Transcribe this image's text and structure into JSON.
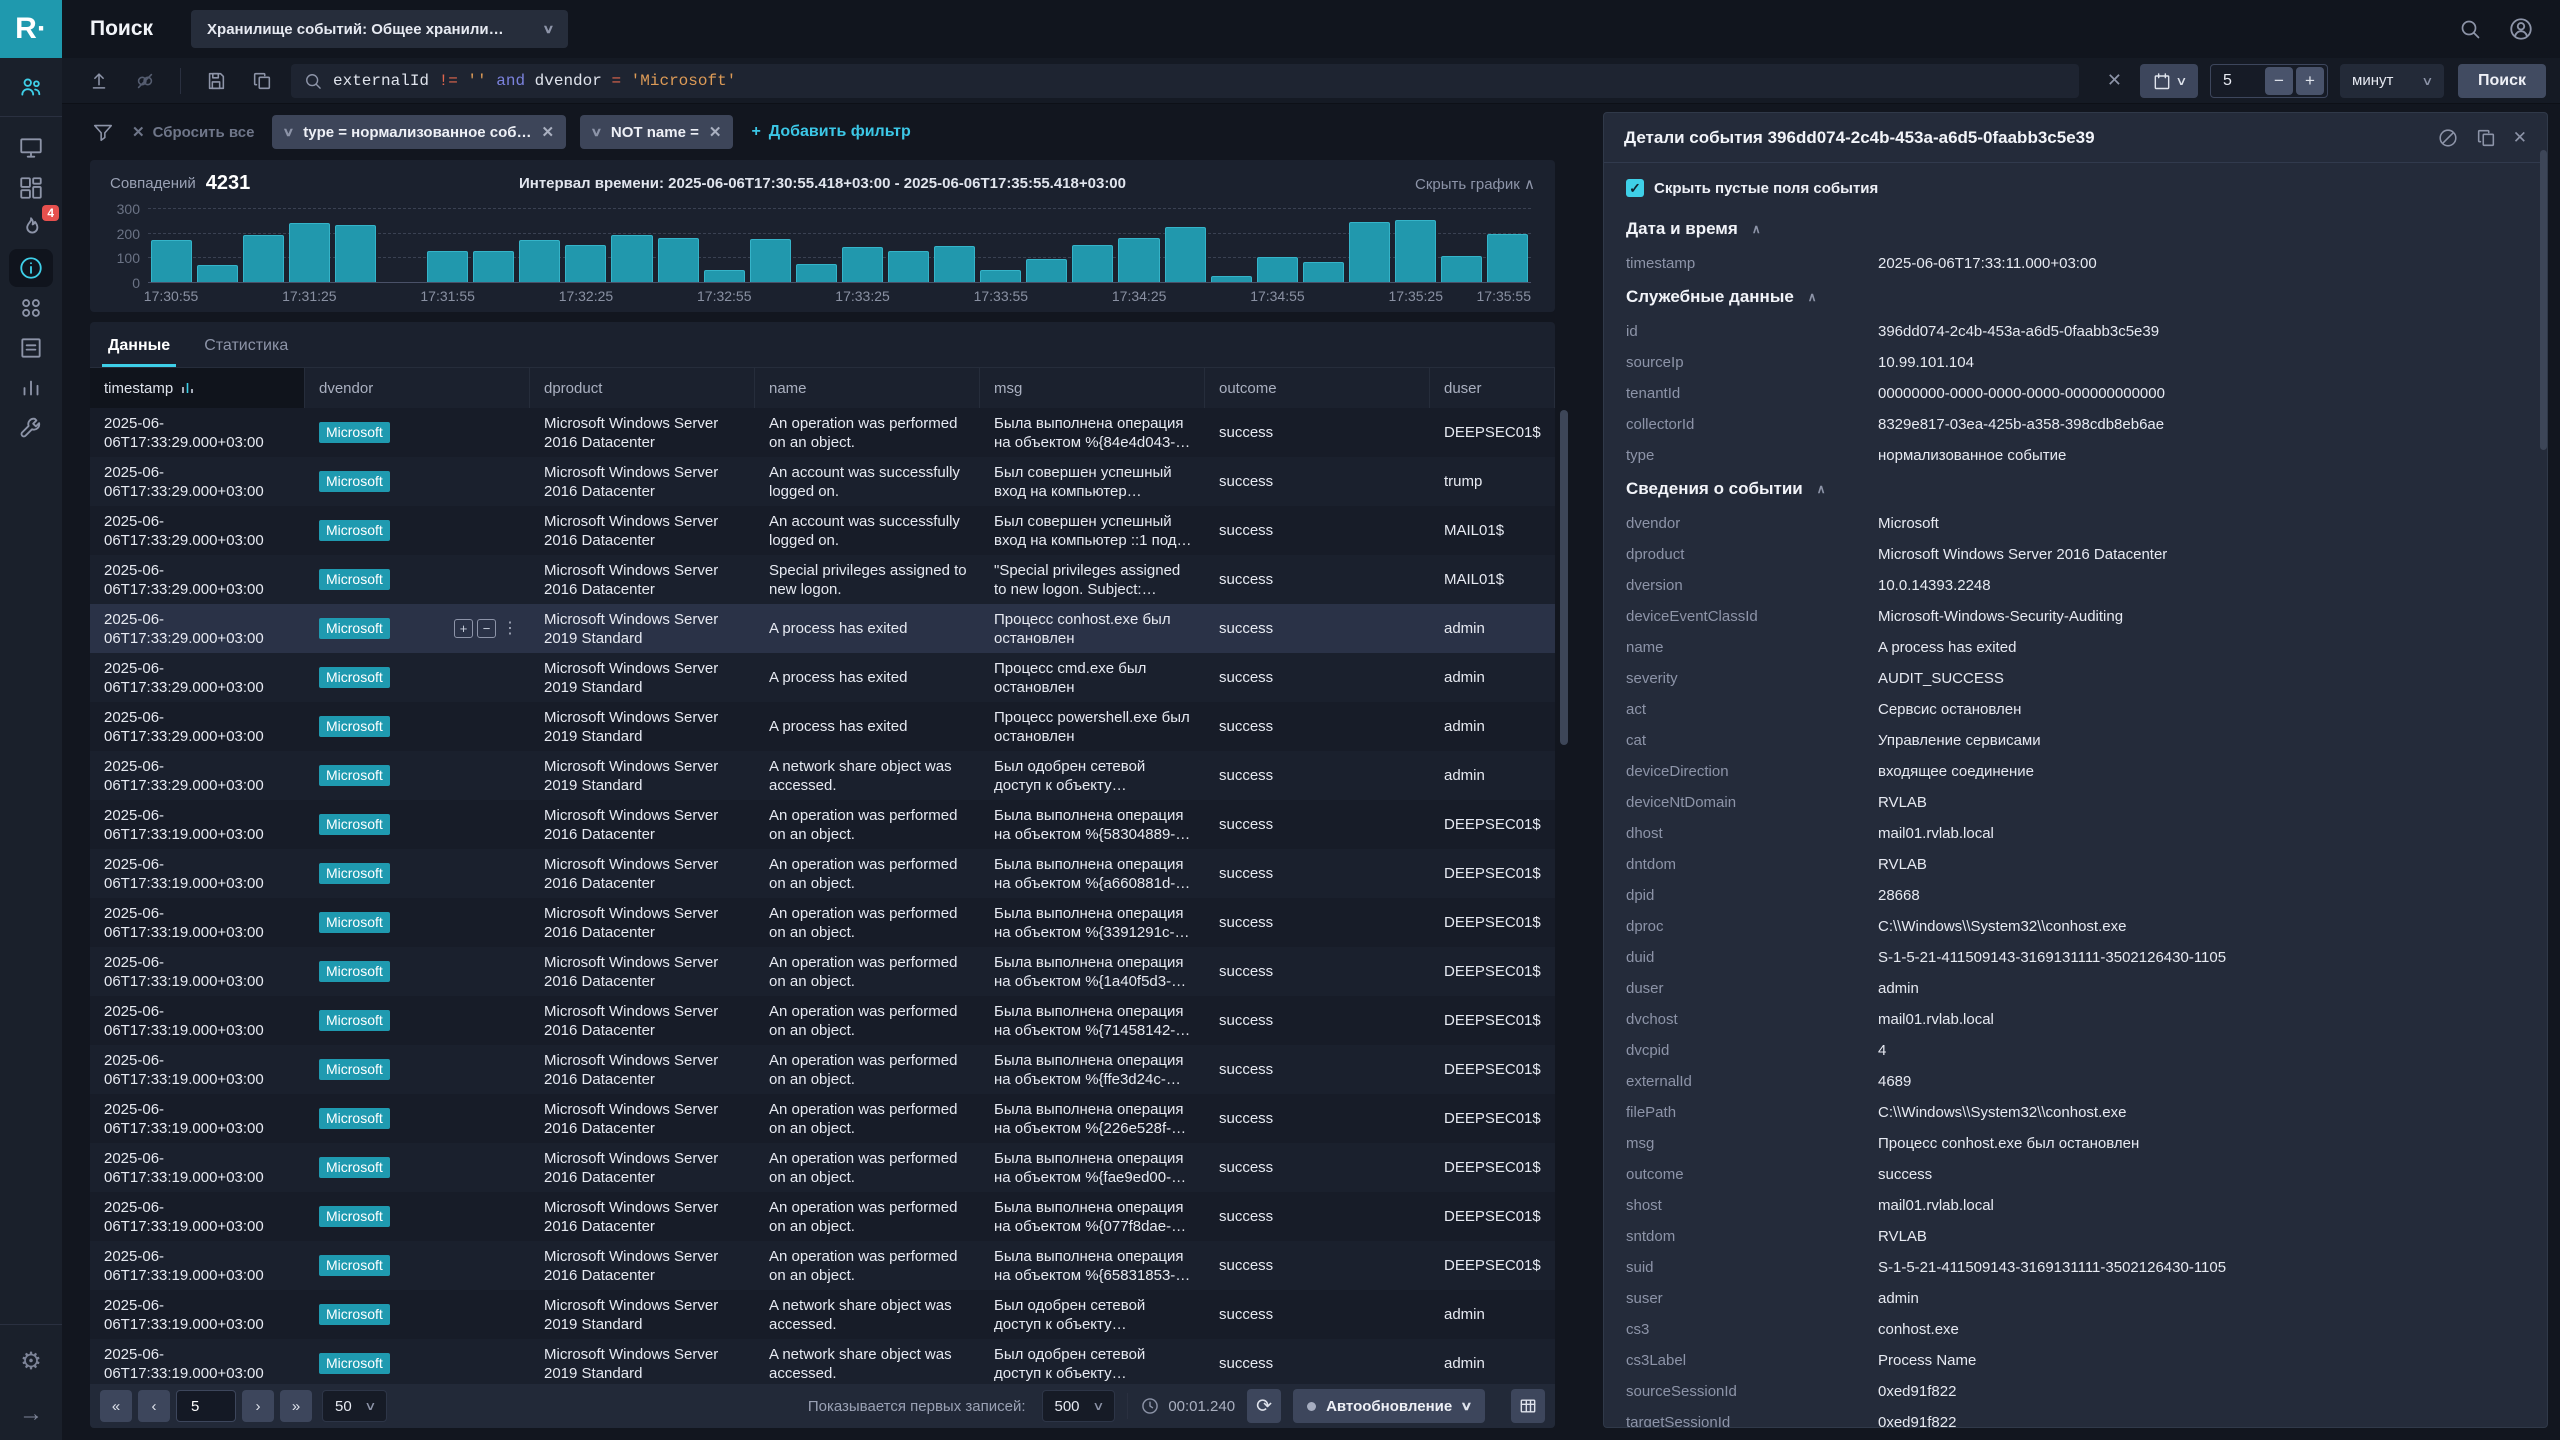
{
  "topbar": {
    "logo": "R·",
    "title": "Поиск",
    "storage_selector": "Хранилище событий: Общее хранили…"
  },
  "sidebar": {
    "incidents_badge": "4"
  },
  "search": {
    "query": "externalId != '' and dvendor = 'Microsoft'",
    "query_tokens": [
      {
        "text": "externalId",
        "type": "f"
      },
      {
        "text": "!=",
        "type": "o"
      },
      {
        "text": "''",
        "type": "s"
      },
      {
        "text": "and",
        "type": "k"
      },
      {
        "text": "dvendor",
        "type": "f"
      },
      {
        "text": "=",
        "type": "o"
      },
      {
        "text": "'Microsoft'",
        "type": "s"
      }
    ],
    "interval_value": "5",
    "interval_unit": "минут",
    "submit_label": "Поиск"
  },
  "filters": {
    "reset_label": "Сбросить все",
    "chips": [
      "type = нормализованное соб…",
      "NOT name ="
    ],
    "add_label": "Добавить фильтр"
  },
  "summary": {
    "matches_label": "Совпадений",
    "matches_count": "4231",
    "interval_text": "Интервал времени:  2025-06-06T17:30:55.418+03:00 - 2025-06-06T17:35:55.418+03:00",
    "hide_chart_label": "Скрыть график"
  },
  "chart_data": {
    "type": "bar",
    "title": "",
    "xlabel": "",
    "ylabel": "",
    "ylim": [
      0,
      300
    ],
    "yticks": [
      300,
      200,
      100,
      0
    ],
    "grid": true,
    "bar_color": "#2198ad",
    "xticks": [
      "17:30:55",
      "17:31:25",
      "17:31:55",
      "17:32:25",
      "17:32:55",
      "17:33:25",
      "17:33:55",
      "17:34:25",
      "17:34:55",
      "17:35:25",
      "17:35:55"
    ],
    "values": [
      170,
      70,
      190,
      240,
      230,
      0,
      125,
      125,
      170,
      150,
      190,
      180,
      50,
      175,
      75,
      140,
      125,
      145,
      50,
      95,
      150,
      180,
      225,
      25,
      100,
      80,
      245,
      250,
      105,
      195
    ]
  },
  "tabs": [
    {
      "label": "Данные"
    },
    {
      "label": "Статистика"
    }
  ],
  "table": {
    "columns": [
      "timestamp",
      "dvendor",
      "dproduct",
      "name",
      "msg",
      "outcome",
      "duser"
    ],
    "rows": [
      {
        "timestamp": "2025-06-06T17:33:29.000+03:00",
        "dvendor": "Microsoft",
        "dproduct": "Microsoft Windows Server 2016 Datacenter",
        "name": "An operation was performed on an object.",
        "msg": "Была выполнена операция на объектом %{84e4d043-…",
        "outcome": "success",
        "duser": "DEEPSEC01$",
        "selected": false
      },
      {
        "timestamp": "2025-06-06T17:33:29.000+03:00",
        "dvendor": "Microsoft",
        "dproduct": "Microsoft Windows Server 2016 Datacenter",
        "name": "An account was successfully logged on.",
        "msg": "Был совершен успешный вход на компьютер…",
        "outcome": "success",
        "duser": "trump",
        "selected": false
      },
      {
        "timestamp": "2025-06-06T17:33:29.000+03:00",
        "dvendor": "Microsoft",
        "dproduct": "Microsoft Windows Server 2016 Datacenter",
        "name": "An account was successfully logged on.",
        "msg": "Был совершен успешный вход на компьютер ::1 под…",
        "outcome": "success",
        "duser": "MAIL01$",
        "selected": false
      },
      {
        "timestamp": "2025-06-06T17:33:29.000+03:00",
        "dvendor": "Microsoft",
        "dproduct": "Microsoft Windows Server 2016 Datacenter",
        "name": "Special privileges assigned to new logon.",
        "msg": "\"Special privileges assigned to new logon. Subject: Security…",
        "outcome": "success",
        "duser": "MAIL01$",
        "selected": false
      },
      {
        "timestamp": "2025-06-06T17:33:29.000+03:00",
        "dvendor": "Microsoft",
        "dproduct": "Microsoft Windows Server 2019 Standard",
        "name": "A process has exited",
        "msg": "Процесс conhost.exe был остановлен",
        "outcome": "success",
        "duser": "admin",
        "selected": true
      },
      {
        "timestamp": "2025-06-06T17:33:29.000+03:00",
        "dvendor": "Microsoft",
        "dproduct": "Microsoft Windows Server 2019 Standard",
        "name": "A process has exited",
        "msg": "Процесс cmd.exe был остановлен",
        "outcome": "success",
        "duser": "admin",
        "selected": false
      },
      {
        "timestamp": "2025-06-06T17:33:29.000+03:00",
        "dvendor": "Microsoft",
        "dproduct": "Microsoft Windows Server 2019 Standard",
        "name": "A process has exited",
        "msg": "Процесс powershell.exe был остановлен",
        "outcome": "success",
        "duser": "admin",
        "selected": false
      },
      {
        "timestamp": "2025-06-06T17:33:29.000+03:00",
        "dvendor": "Microsoft",
        "dproduct": "Microsoft Windows Server 2019 Standard",
        "name": "A network share object was accessed.",
        "msg": "Был одобрен сетевой доступ к объекту…",
        "outcome": "success",
        "duser": "admin",
        "selected": false
      },
      {
        "timestamp": "2025-06-06T17:33:19.000+03:00",
        "dvendor": "Microsoft",
        "dproduct": "Microsoft Windows Server 2016 Datacenter",
        "name": "An operation was performed on an object.",
        "msg": "Была выполнена операция на объектом %{58304889-…",
        "outcome": "success",
        "duser": "DEEPSEC01$",
        "selected": false
      },
      {
        "timestamp": "2025-06-06T17:33:19.000+03:00",
        "dvendor": "Microsoft",
        "dproduct": "Microsoft Windows Server 2016 Datacenter",
        "name": "An operation was performed on an object.",
        "msg": "Была выполнена операция на объектом %{a660881d-…",
        "outcome": "success",
        "duser": "DEEPSEC01$",
        "selected": false
      },
      {
        "timestamp": "2025-06-06T17:33:19.000+03:00",
        "dvendor": "Microsoft",
        "dproduct": "Microsoft Windows Server 2016 Datacenter",
        "name": "An operation was performed on an object.",
        "msg": "Была выполнена операция на объектом %{3391291c-…",
        "outcome": "success",
        "duser": "DEEPSEC01$",
        "selected": false
      },
      {
        "timestamp": "2025-06-06T17:33:19.000+03:00",
        "dvendor": "Microsoft",
        "dproduct": "Microsoft Windows Server 2016 Datacenter",
        "name": "An operation was performed on an object.",
        "msg": "Была выполнена операция на объектом %{1a40f5d3-…",
        "outcome": "success",
        "duser": "DEEPSEC01$",
        "selected": false
      },
      {
        "timestamp": "2025-06-06T17:33:19.000+03:00",
        "dvendor": "Microsoft",
        "dproduct": "Microsoft Windows Server 2016 Datacenter",
        "name": "An operation was performed on an object.",
        "msg": "Была выполнена операция на объектом %{71458142-…",
        "outcome": "success",
        "duser": "DEEPSEC01$",
        "selected": false
      },
      {
        "timestamp": "2025-06-06T17:33:19.000+03:00",
        "dvendor": "Microsoft",
        "dproduct": "Microsoft Windows Server 2016 Datacenter",
        "name": "An operation was performed on an object.",
        "msg": "Была выполнена операция на объектом %{ffe3d24c-…",
        "outcome": "success",
        "duser": "DEEPSEC01$",
        "selected": false
      },
      {
        "timestamp": "2025-06-06T17:33:19.000+03:00",
        "dvendor": "Microsoft",
        "dproduct": "Microsoft Windows Server 2016 Datacenter",
        "name": "An operation was performed on an object.",
        "msg": "Была выполнена операция на объектом %{226e528f-…",
        "outcome": "success",
        "duser": "DEEPSEC01$",
        "selected": false
      },
      {
        "timestamp": "2025-06-06T17:33:19.000+03:00",
        "dvendor": "Microsoft",
        "dproduct": "Microsoft Windows Server 2016 Datacenter",
        "name": "An operation was performed on an object.",
        "msg": "Была выполнена операция на объектом %{fae9ed00-…",
        "outcome": "success",
        "duser": "DEEPSEC01$",
        "selected": false
      },
      {
        "timestamp": "2025-06-06T17:33:19.000+03:00",
        "dvendor": "Microsoft",
        "dproduct": "Microsoft Windows Server 2016 Datacenter",
        "name": "An operation was performed on an object.",
        "msg": "Была выполнена операция на объектом %{077f8dae-…",
        "outcome": "success",
        "duser": "DEEPSEC01$",
        "selected": false
      },
      {
        "timestamp": "2025-06-06T17:33:19.000+03:00",
        "dvendor": "Microsoft",
        "dproduct": "Microsoft Windows Server 2016 Datacenter",
        "name": "An operation was performed on an object.",
        "msg": "Была выполнена операция на объектом %{65831853-…",
        "outcome": "success",
        "duser": "DEEPSEC01$",
        "selected": false
      },
      {
        "timestamp": "2025-06-06T17:33:19.000+03:00",
        "dvendor": "Microsoft",
        "dproduct": "Microsoft Windows Server 2019 Standard",
        "name": "A network share object was accessed.",
        "msg": "Был одобрен сетевой доступ к объекту…",
        "outcome": "success",
        "duser": "admin",
        "selected": false
      },
      {
        "timestamp": "2025-06-06T17:33:19.000+03:00",
        "dvendor": "Microsoft",
        "dproduct": "Microsoft Windows Server 2019 Standard",
        "name": "A network share object was accessed.",
        "msg": "Был одобрен сетевой доступ к объекту…",
        "outcome": "success",
        "duser": "admin",
        "selected": false
      }
    ]
  },
  "pagination": {
    "page": "5",
    "page_size": "50",
    "showing_label": "Показывается первых записей:",
    "showing_value": "500",
    "elapsed": "00:01.240",
    "autorefresh_label": "Автообновление"
  },
  "details": {
    "title": "Детали события 396dd074-2c4b-453a-a6d5-0faabb3c5e39",
    "hide_empty_label": "Скрыть пустые поля события",
    "sections": [
      {
        "title": "Дата и время",
        "fields": [
          [
            "timestamp",
            "2025-06-06T17:33:11.000+03:00"
          ]
        ]
      },
      {
        "title": "Служебные данные",
        "fields": [
          [
            "id",
            "396dd074-2c4b-453a-a6d5-0faabb3c5e39"
          ],
          [
            "sourceIp",
            "10.99.101.104"
          ],
          [
            "tenantId",
            "00000000-0000-0000-0000-000000000000"
          ],
          [
            "collectorId",
            "8329e817-03ea-425b-a358-398cdb8eb6ae"
          ],
          [
            "type",
            "нормализованное событие"
          ]
        ]
      },
      {
        "title": "Сведения о событии",
        "fields": [
          [
            "dvendor",
            "Microsoft"
          ],
          [
            "dproduct",
            "Microsoft Windows Server 2016 Datacenter"
          ],
          [
            "dversion",
            "10.0.14393.2248"
          ],
          [
            "deviceEventClassId",
            "Microsoft-Windows-Security-Auditing"
          ],
          [
            "name",
            "A process has exited"
          ],
          [
            "severity",
            "AUDIT_SUCCESS"
          ],
          [
            "act",
            "Сервсис остановлен"
          ],
          [
            "cat",
            "Управление сервисами"
          ],
          [
            "deviceDirection",
            "входящее соединение"
          ],
          [
            "deviceNtDomain",
            "RVLAB"
          ],
          [
            "dhost",
            "mail01.rvlab.local"
          ],
          [
            "dntdom",
            "RVLAB"
          ],
          [
            "dpid",
            "28668"
          ],
          [
            "dproc",
            "C:\\\\Windows\\\\System32\\\\conhost.exe"
          ],
          [
            "duid",
            "S-1-5-21-411509143-3169131111-3502126430-1105"
          ],
          [
            "duser",
            "admin"
          ],
          [
            "dvchost",
            "mail01.rvlab.local"
          ],
          [
            "dvcpid",
            "4"
          ],
          [
            "externalId",
            "4689"
          ],
          [
            "filePath",
            "C:\\\\Windows\\\\System32\\\\conhost.exe"
          ],
          [
            "msg",
            "Процесс conhost.exe был остановлен"
          ],
          [
            "outcome",
            "success"
          ],
          [
            "shost",
            "mail01.rvlab.local"
          ],
          [
            "sntdom",
            "RVLAB"
          ],
          [
            "suid",
            "S-1-5-21-411509143-3169131111-3502126430-1105"
          ],
          [
            "suser",
            "admin"
          ],
          [
            "cs3",
            "conhost.exe"
          ],
          [
            "cs3Label",
            "Process Name"
          ],
          [
            "sourceSessionId",
            "0xed91f822"
          ],
          [
            "targetSessionId",
            "0xed91f822"
          ]
        ]
      }
    ]
  }
}
